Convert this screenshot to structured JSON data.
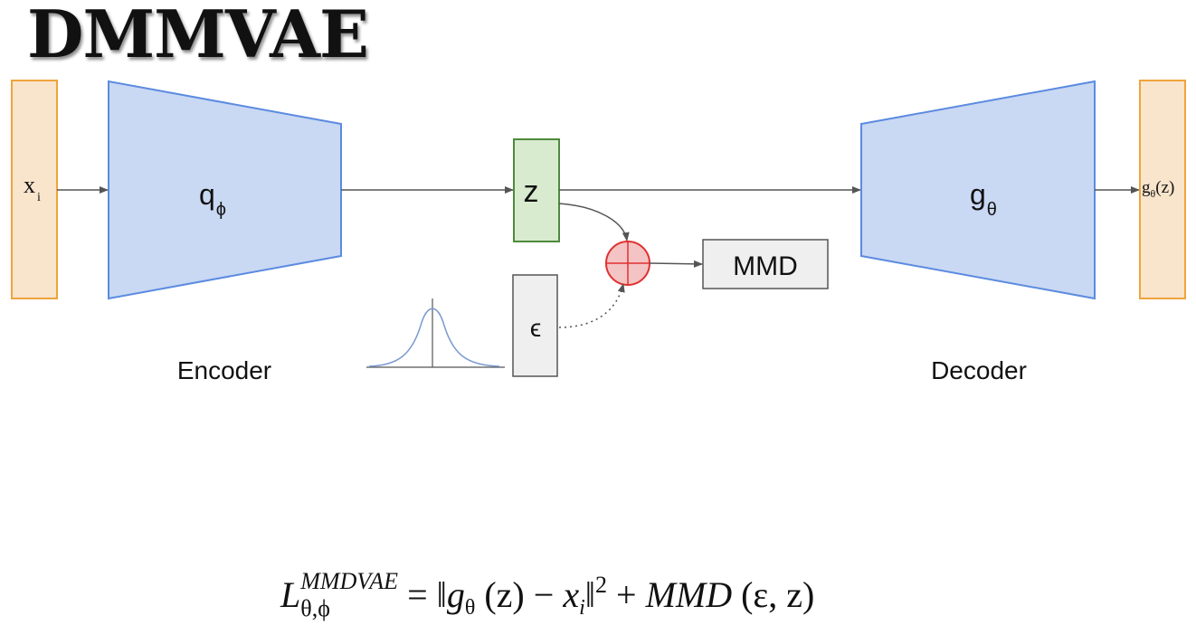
{
  "title": "DMMVAE",
  "diagram": {
    "input_label": "x",
    "input_subscript": "i",
    "encoder_fn": "q",
    "encoder_fn_subscript": "ϕ",
    "latent_label": "z",
    "noise_label": "ϵ",
    "mmd_label": "MMD",
    "decoder_fn": "g",
    "decoder_fn_subscript": "θ",
    "output_label_fn": "g",
    "output_label_subscript": "θ",
    "output_label_arg": "(z)",
    "encoder_caption": "Encoder",
    "decoder_caption": "Decoder"
  },
  "formula": {
    "lhs_symbol": "L",
    "lhs_superscript": "MMDVAE",
    "lhs_subscript": "θ,ϕ",
    "equals": "=",
    "norm_open": "‖",
    "g": "g",
    "g_sub": "θ",
    "arg_z": "(z)",
    "minus": "−",
    "x": "x",
    "x_sub": "i",
    "norm_close": "‖",
    "exponent": "2",
    "plus": "+",
    "mmd": "MMD",
    "mmd_args": "(ε, z)"
  },
  "colors": {
    "input_fill": "#f9e4cc",
    "input_stroke": "#f0a33c",
    "network_fill": "#c9d8f3",
    "network_stroke": "#5b8be0",
    "latent_fill": "#d8ebcf",
    "latent_stroke": "#4f8a3c",
    "box_fill": "#efefef",
    "box_stroke": "#555555",
    "add_fill": "#f4c4c4",
    "add_stroke": "#e03030",
    "curve": "#7a9ad0"
  }
}
